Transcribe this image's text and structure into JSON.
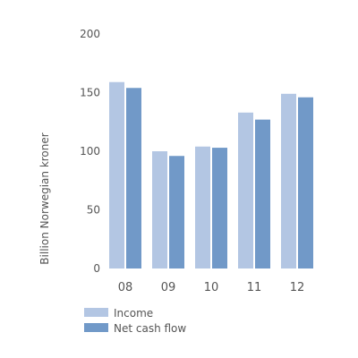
{
  "chart_data": {
    "type": "bar",
    "categories": [
      "08",
      "09",
      "10",
      "11",
      "12"
    ],
    "series": [
      {
        "name": "Income",
        "values": [
          159,
          100,
          104,
          133,
          149
        ],
        "color": "#b3c6e3"
      },
      {
        "name": "Net cash flow",
        "values": [
          154,
          96,
          103,
          127,
          146
        ],
        "color": "#7199c8"
      }
    ],
    "title": "",
    "xlabel": "",
    "ylabel": "Billion Norwegian kroner",
    "ylim": [
      0,
      200
    ],
    "yticks": [
      "0",
      "50",
      "100",
      "150",
      "200"
    ],
    "grid": false,
    "legend_position": "bottom-left"
  }
}
